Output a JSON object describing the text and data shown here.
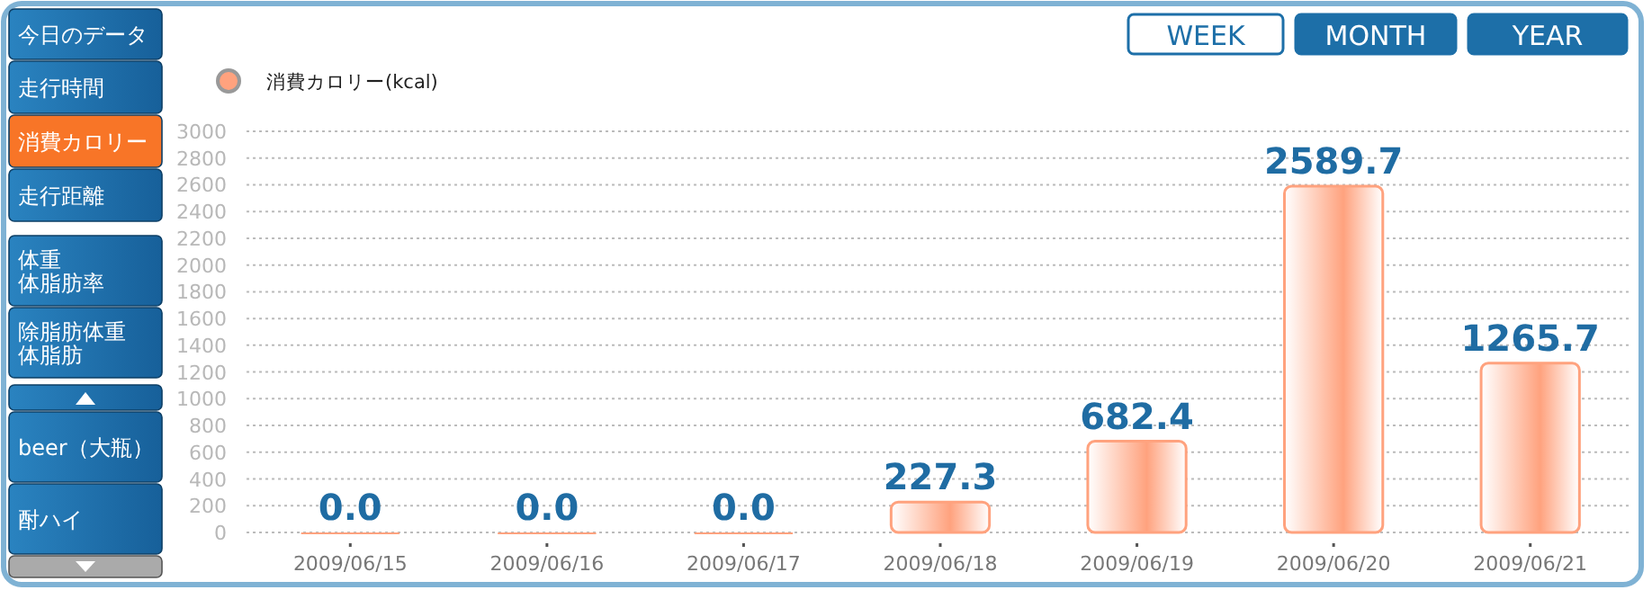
{
  "chart_data": {
    "type": "bar",
    "categories": [
      "2009/06/15",
      "2009/06/16",
      "2009/06/17",
      "2009/06/18",
      "2009/06/19",
      "2009/06/20",
      "2009/06/21"
    ],
    "series": [
      {
        "name": "消費カロリー(kcal)",
        "color": "#ffa27e",
        "values": [
          0.0,
          0.0,
          0.0,
          227.3,
          682.4,
          2589.7,
          1265.7
        ],
        "value_labels": [
          "0.0",
          "0.0",
          "0.0",
          "227.3",
          "682.4",
          "2589.7",
          "1265.7"
        ]
      }
    ],
    "ylim": [
      0,
      3000
    ],
    "yticks": [
      0,
      200,
      400,
      600,
      800,
      1000,
      1200,
      1400,
      1600,
      1800,
      2000,
      2200,
      2400,
      2600,
      2800,
      3000
    ],
    "grid": "y",
    "legend": "top left",
    "annotations": [
      "今日のデータ",
      "走行時間",
      "消費カロリー",
      "走行距離",
      "体重",
      "体脂肪率",
      "除脂肪体重",
      "体脂肪",
      "beer（大瓶）",
      "酎ハイ",
      "WEEK",
      "MONTH",
      "YEAR"
    ]
  }
}
